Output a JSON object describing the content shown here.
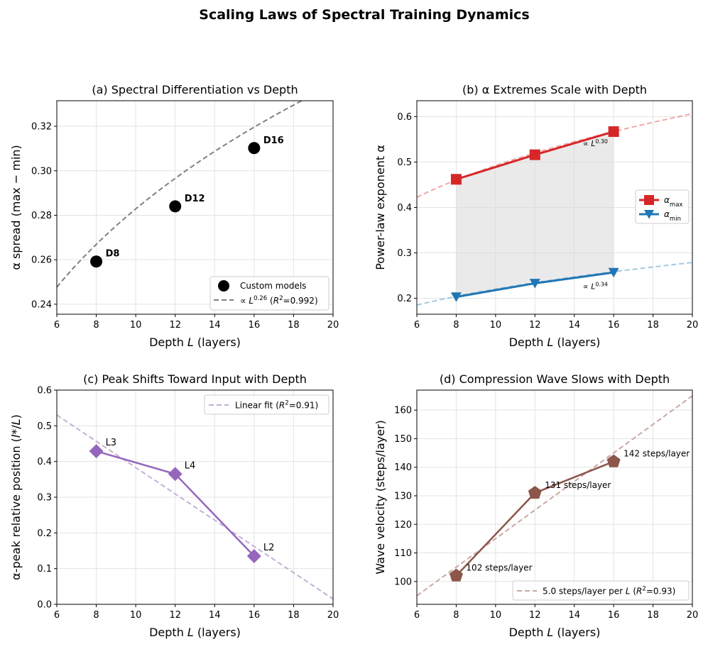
{
  "figure": {
    "title": "Scaling Laws of Spectral Training Dynamics"
  },
  "chart_data": [
    {
      "id": "a",
      "type": "scatter",
      "title": "(a) Spectral Differentiation vs Depth",
      "xlabel": "Depth L (layers)",
      "ylabel": "α spread (max − min)",
      "xlim": [
        6,
        20
      ],
      "ylim": [
        0.2355,
        0.3315
      ],
      "xticks": [
        6,
        8,
        10,
        12,
        14,
        16,
        18,
        20
      ],
      "yticks": [
        0.24,
        0.26,
        0.28,
        0.3,
        0.32
      ],
      "ytick_decimals": 2,
      "grid": true,
      "legend_position": "lower-right",
      "points": [
        {
          "x": 8,
          "y": 0.2592,
          "label": "D8"
        },
        {
          "x": 12,
          "y": 0.284,
          "label": "D12"
        },
        {
          "x": 16,
          "y": 0.3102,
          "label": "D16"
        }
      ],
      "fit": {
        "coef": 0.15544,
        "exponent": 0.26,
        "r2": 0.992
      },
      "legend": {
        "points": "Custom models",
        "fit": "∝ L^0.26 (R^2=0.992)"
      },
      "colors": {
        "points": "#000000",
        "fit": "#808080"
      }
    },
    {
      "id": "b",
      "type": "line",
      "title": "(b) α Extremes Scale with Depth",
      "xlabel": "Depth L (layers)",
      "ylabel": "Power-law exponent α",
      "xlim": [
        6,
        20
      ],
      "ylim": [
        0.165,
        0.635
      ],
      "xticks": [
        6,
        8,
        10,
        12,
        14,
        16,
        18,
        20
      ],
      "yticks": [
        0.2,
        0.3,
        0.4,
        0.5,
        0.6
      ],
      "ytick_decimals": 1,
      "grid": true,
      "legend_position": "center-right",
      "x": [
        8,
        12,
        16
      ],
      "series": [
        {
          "name": "α_max",
          "values": [
            0.462,
            0.516,
            0.567
          ],
          "color": "#d62728",
          "fit_coef": 0.2468,
          "fit_exponent": 0.3,
          "fit_label": "∝ L^0.30"
        },
        {
          "name": "α_min",
          "values": [
            0.203,
            0.233,
            0.257
          ],
          "color": "#1f77b4",
          "fit_coef": 0.1007,
          "fit_exponent": 0.34,
          "fit_label": "∝ L^0.34"
        }
      ]
    },
    {
      "id": "c",
      "type": "line",
      "title": "(c) Peak Shifts Toward Input with Depth",
      "xlabel": "Depth L (layers)",
      "ylabel": "α-peak relative position (l*/L)",
      "xlim": [
        6,
        20
      ],
      "ylim": [
        0.0,
        0.6
      ],
      "xticks": [
        6,
        8,
        10,
        12,
        14,
        16,
        18,
        20
      ],
      "yticks": [
        0.0,
        0.1,
        0.2,
        0.3,
        0.4,
        0.5,
        0.6
      ],
      "ytick_decimals": 1,
      "grid": true,
      "legend_position": "upper-right",
      "points": [
        {
          "x": 8,
          "y": 0.429,
          "label": "L3"
        },
        {
          "x": 12,
          "y": 0.365,
          "label": "L4"
        },
        {
          "x": 16,
          "y": 0.135,
          "label": "L2"
        }
      ],
      "fit": {
        "slope": -0.0368,
        "intercept": 0.751,
        "r2": 0.91
      },
      "legend": {
        "fit": "Linear fit (R^2=0.91)"
      },
      "colors": {
        "series": "#9467bd",
        "fit": "#c5b0d5"
      }
    },
    {
      "id": "d",
      "type": "line",
      "title": "(d) Compression Wave Slows with Depth",
      "xlabel": "Depth L (layers)",
      "ylabel": "Wave velocity (steps/layer)",
      "xlim": [
        6,
        20
      ],
      "ylim": [
        92,
        167
      ],
      "xticks": [
        6,
        8,
        10,
        12,
        14,
        16,
        18,
        20
      ],
      "yticks": [
        100,
        110,
        120,
        130,
        140,
        150,
        160
      ],
      "ytick_decimals": 0,
      "grid": true,
      "legend_position": "lower-right",
      "points": [
        {
          "x": 8,
          "y": 102,
          "label": "102 steps/layer"
        },
        {
          "x": 12,
          "y": 131,
          "label": "131 steps/layer"
        },
        {
          "x": 16,
          "y": 142,
          "label": "142 steps/layer"
        }
      ],
      "fit": {
        "slope": 5.0,
        "intercept": 65.0,
        "r2": 0.93
      },
      "legend": {
        "fit": "5.0 steps/layer per L (R^2=0.93)"
      },
      "colors": {
        "series": "#8c564b",
        "fit": "#c8a9a3"
      }
    }
  ]
}
